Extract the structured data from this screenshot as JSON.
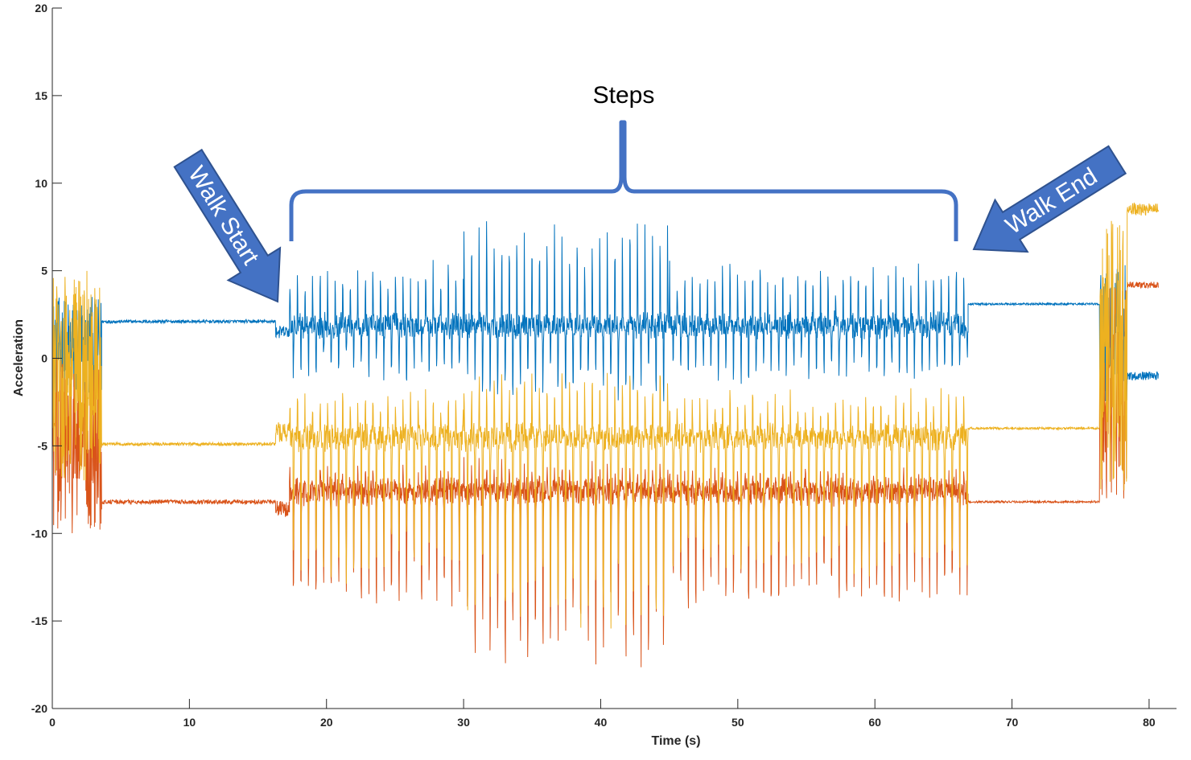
{
  "chart_data": {
    "type": "line",
    "xlabel": "Time (s)",
    "ylabel": "Acceleration",
    "xlim": [
      0,
      82
    ],
    "ylim": [
      -20,
      20
    ],
    "xticks": [
      0,
      10,
      20,
      30,
      40,
      50,
      60,
      70,
      80
    ],
    "yticks": [
      -20,
      -15,
      -10,
      -5,
      0,
      5,
      10,
      15,
      20
    ],
    "grid": false,
    "series": [
      {
        "color": "#0072BD",
        "segments": [
          {
            "x0": 0.0,
            "x1": 3.6,
            "level": 0.5,
            "noise": 3.0,
            "peak": 0,
            "period": 0,
            "down": 0
          },
          {
            "x0": 3.6,
            "x1": 16.3,
            "level": 2.1,
            "noise": 0.15,
            "peak": 0,
            "period": 0,
            "down": 0
          },
          {
            "x0": 16.3,
            "x1": 17.3,
            "level": 1.5,
            "noise": 0.6,
            "peak": 0,
            "period": 0,
            "down": 0
          },
          {
            "x0": 17.3,
            "x1": 30.0,
            "level": 1.9,
            "noise": 0.4,
            "peak": 2.8,
            "period": 0.55,
            "down": 2.6
          },
          {
            "x0": 30.0,
            "x1": 45.0,
            "level": 1.9,
            "noise": 0.4,
            "peak": 4.8,
            "period": 0.55,
            "down": 3.3
          },
          {
            "x0": 45.0,
            "x1": 66.8,
            "level": 1.9,
            "noise": 0.4,
            "peak": 2.8,
            "period": 0.55,
            "down": 2.5
          },
          {
            "x0": 66.8,
            "x1": 76.4,
            "level": 3.1,
            "noise": 0.1,
            "peak": 0,
            "period": 0,
            "down": 0
          },
          {
            "x0": 76.4,
            "x1": 78.4,
            "level": 1.0,
            "noise": 4.5,
            "peak": 0,
            "period": 0,
            "down": 0
          },
          {
            "x0": 78.4,
            "x1": 80.7,
            "level": -1.0,
            "noise": 0.4,
            "peak": 0,
            "period": 0,
            "down": 0
          }
        ]
      },
      {
        "color": "#D95319",
        "segments": [
          {
            "x0": 0.0,
            "x1": 3.6,
            "level": -5.0,
            "noise": 5.0,
            "peak": 0,
            "period": 0,
            "down": 0
          },
          {
            "x0": 3.6,
            "x1": 16.3,
            "level": -8.2,
            "noise": 0.2,
            "peak": 0,
            "period": 0,
            "down": 0
          },
          {
            "x0": 16.3,
            "x1": 17.3,
            "level": -8.6,
            "noise": 0.8,
            "peak": 0,
            "period": 0,
            "down": 0
          },
          {
            "x0": 17.3,
            "x1": 30.0,
            "level": -7.6,
            "noise": 0.5,
            "peak": 0.8,
            "period": 0.55,
            "down": 5.5
          },
          {
            "x0": 30.0,
            "x1": 45.0,
            "level": -7.6,
            "noise": 0.5,
            "peak": 1.2,
            "period": 0.55,
            "down": 8.5
          },
          {
            "x0": 45.0,
            "x1": 66.8,
            "level": -7.6,
            "noise": 0.5,
            "peak": 0.8,
            "period": 0.55,
            "down": 5.5
          },
          {
            "x0": 66.8,
            "x1": 76.4,
            "level": -8.2,
            "noise": 0.1,
            "peak": 0,
            "period": 0,
            "down": 0
          },
          {
            "x0": 76.4,
            "x1": 78.4,
            "level": -2.0,
            "noise": 6.0,
            "peak": 0,
            "period": 0,
            "down": 0
          },
          {
            "x0": 78.4,
            "x1": 80.7,
            "level": 4.2,
            "noise": 0.3,
            "peak": 0,
            "period": 0,
            "down": 0
          }
        ]
      },
      {
        "color": "#EDB120",
        "segments": [
          {
            "x0": 0.0,
            "x1": 3.6,
            "level": -1.0,
            "noise": 6.0,
            "peak": 0,
            "period": 0,
            "down": 0
          },
          {
            "x0": 3.6,
            "x1": 16.3,
            "level": -4.9,
            "noise": 0.15,
            "peak": 0,
            "period": 0,
            "down": 0
          },
          {
            "x0": 16.3,
            "x1": 17.3,
            "level": -4.2,
            "noise": 1.0,
            "peak": 0,
            "period": 0,
            "down": 0
          },
          {
            "x0": 17.3,
            "x1": 30.0,
            "level": -4.5,
            "noise": 0.5,
            "peak": 2.0,
            "period": 0.55,
            "down": 7.0
          },
          {
            "x0": 30.0,
            "x1": 45.0,
            "level": -4.5,
            "noise": 0.5,
            "peak": 3.0,
            "period": 0.55,
            "down": 9.5
          },
          {
            "x0": 45.0,
            "x1": 66.8,
            "level": -4.5,
            "noise": 0.5,
            "peak": 2.0,
            "period": 0.55,
            "down": 7.0
          },
          {
            "x0": 66.8,
            "x1": 76.4,
            "level": -4.0,
            "noise": 0.1,
            "peak": 0,
            "period": 0,
            "down": 0
          },
          {
            "x0": 76.4,
            "x1": 78.4,
            "level": 0.0,
            "noise": 8.0,
            "peak": 0,
            "period": 0,
            "down": 0
          },
          {
            "x0": 78.4,
            "x1": 80.7,
            "level": 8.5,
            "noise": 0.6,
            "peak": 0,
            "period": 0,
            "down": 0
          }
        ]
      }
    ],
    "annotations": {
      "walk_start": "Walk Start",
      "walk_end": "Walk End",
      "steps": "Steps"
    },
    "colors": {
      "arrow_fill": "#4472C4",
      "arrow_stroke": "#2F528F",
      "bracket": "#4472C4"
    }
  }
}
